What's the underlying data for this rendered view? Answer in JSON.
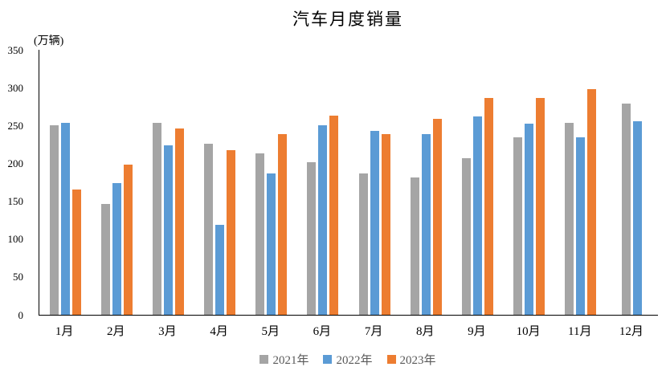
{
  "chart_data": {
    "type": "bar",
    "title": "汽车月度销量",
    "ylabel": "(万辆)",
    "xlabel": "",
    "categories": [
      "1月",
      "2月",
      "3月",
      "4月",
      "5月",
      "6月",
      "7月",
      "8月",
      "9月",
      "10月",
      "11月",
      "12月"
    ],
    "series": [
      {
        "name": "2021年",
        "color": "#A5A5A5",
        "values": [
          250,
          146,
          253,
          226,
          213,
          202,
          187,
          181,
          207,
          234,
          253,
          279
        ]
      },
      {
        "name": "2022年",
        "color": "#5B9BD5",
        "values": [
          253,
          174,
          224,
          119,
          187,
          250,
          243,
          239,
          262,
          252,
          234,
          256
        ]
      },
      {
        "name": "2023年",
        "color": "#ED7D31",
        "values": [
          165,
          198,
          246,
          217,
          239,
          263,
          239,
          259,
          286,
          286,
          298,
          null
        ]
      }
    ],
    "ylim": [
      0,
      350
    ],
    "yticks": [
      0,
      50,
      100,
      150,
      200,
      250,
      300,
      350
    ],
    "grid": false,
    "legend_position": "bottom",
    "axis_color": "#000000",
    "legend_text_color": "#595959"
  }
}
